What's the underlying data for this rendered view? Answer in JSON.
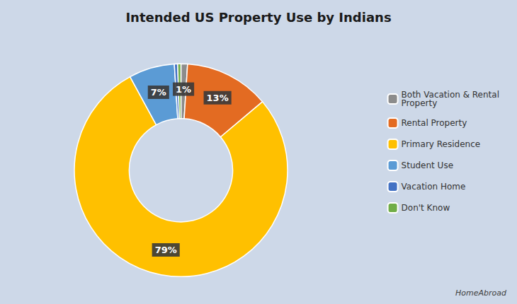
{
  "chart_data": {
    "type": "pie",
    "title": "Intended US Property Use by Indians",
    "categories": [
      "Both Vacation & Rental\nProperty",
      "Rental Property",
      "Primary Residence",
      "Student Use",
      "Vacation Home",
      "Don't Know"
    ],
    "values": [
      1,
      13,
      79,
      7,
      0.5,
      0.5
    ],
    "value_labels": [
      "1%",
      "13%",
      "79%",
      "7%",
      null,
      null
    ],
    "colors": [
      "#8c8c8c",
      "#e36b22",
      "#ffc000",
      "#5b9bd5",
      "#4472c4",
      "#70ad47"
    ],
    "data_labels": true,
    "legend": "right",
    "annotation": "HomeAbroad"
  }
}
